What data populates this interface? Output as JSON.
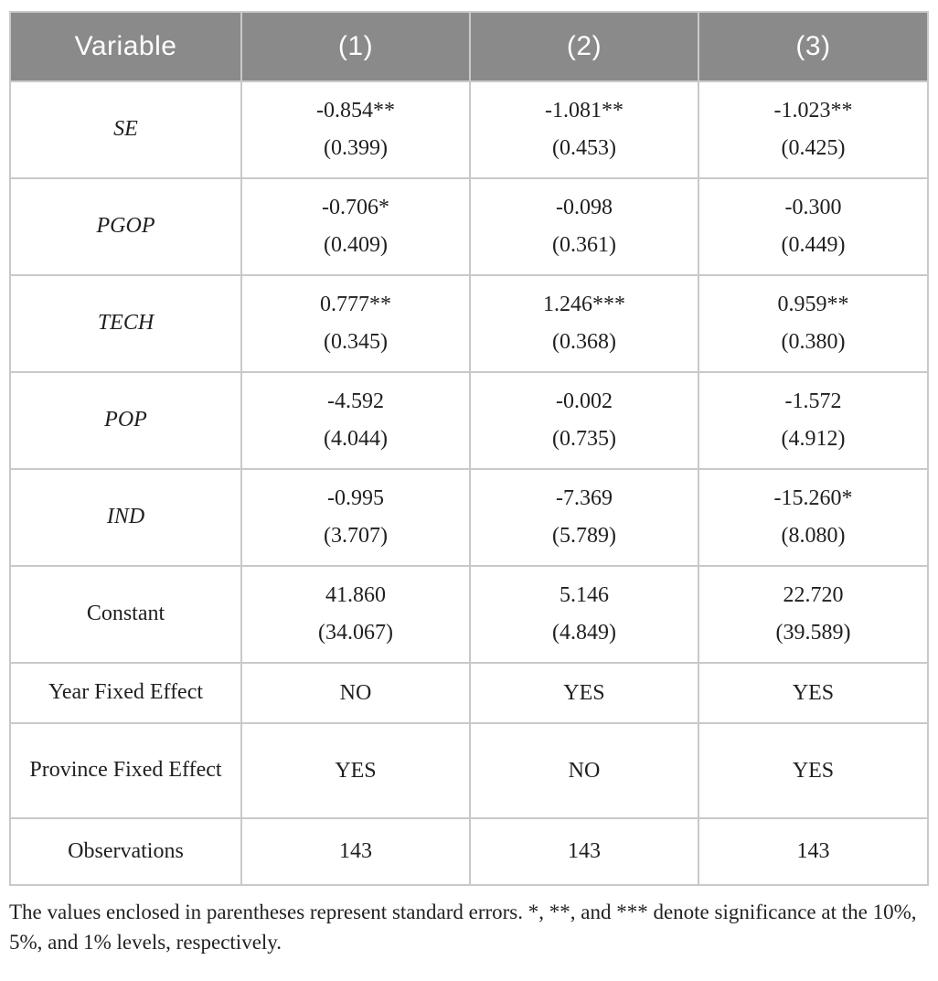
{
  "table": {
    "headers": [
      "Variable",
      "(1)",
      "(2)",
      "(3)"
    ],
    "rows": [
      {
        "label": "SE",
        "italic": true,
        "values": [
          "-0.854**",
          "-1.081**",
          "-1.023**"
        ],
        "se": [
          "(0.399)",
          "(0.453)",
          "(0.425)"
        ]
      },
      {
        "label": "PGOP",
        "italic": true,
        "values": [
          "-0.706*",
          "-0.098",
          "-0.300"
        ],
        "se": [
          "(0.409)",
          "(0.361)",
          "(0.449)"
        ]
      },
      {
        "label": "TECH",
        "italic": true,
        "values": [
          "0.777**",
          "1.246***",
          "0.959**"
        ],
        "se": [
          "(0.345)",
          "(0.368)",
          "(0.380)"
        ]
      },
      {
        "label": "POP",
        "italic": true,
        "values": [
          "-4.592",
          "-0.002",
          "-1.572"
        ],
        "se": [
          "(4.044)",
          "(0.735)",
          "(4.912)"
        ]
      },
      {
        "label": "IND",
        "italic": true,
        "values": [
          "-0.995",
          "-7.369",
          "-15.260*"
        ],
        "se": [
          "(3.707)",
          "(5.789)",
          "(8.080)"
        ]
      },
      {
        "label": "Constant",
        "italic": false,
        "values": [
          "41.860",
          "5.146",
          "22.720"
        ],
        "se": [
          "(34.067)",
          "(4.849)",
          "(39.589)"
        ]
      },
      {
        "label": "Year Fixed Effect",
        "italic": false,
        "values": [
          "NO",
          "YES",
          "YES"
        ]
      },
      {
        "label": "Province Fixed Effect",
        "italic": false,
        "values": [
          "YES",
          "NO",
          "YES"
        ]
      },
      {
        "label": "Observations",
        "italic": false,
        "values": [
          "143",
          "143",
          "143"
        ]
      }
    ]
  },
  "footnote": "The values enclosed in parentheses represent standard errors. *, **, and *** denote significance at the 10%, 5%, and 1% levels, respectively.",
  "colors": {
    "header_background": "#8a8a8a",
    "header_text": "#ffffff",
    "border": "#c9c9c9",
    "body_text": "#1f1f1f"
  }
}
